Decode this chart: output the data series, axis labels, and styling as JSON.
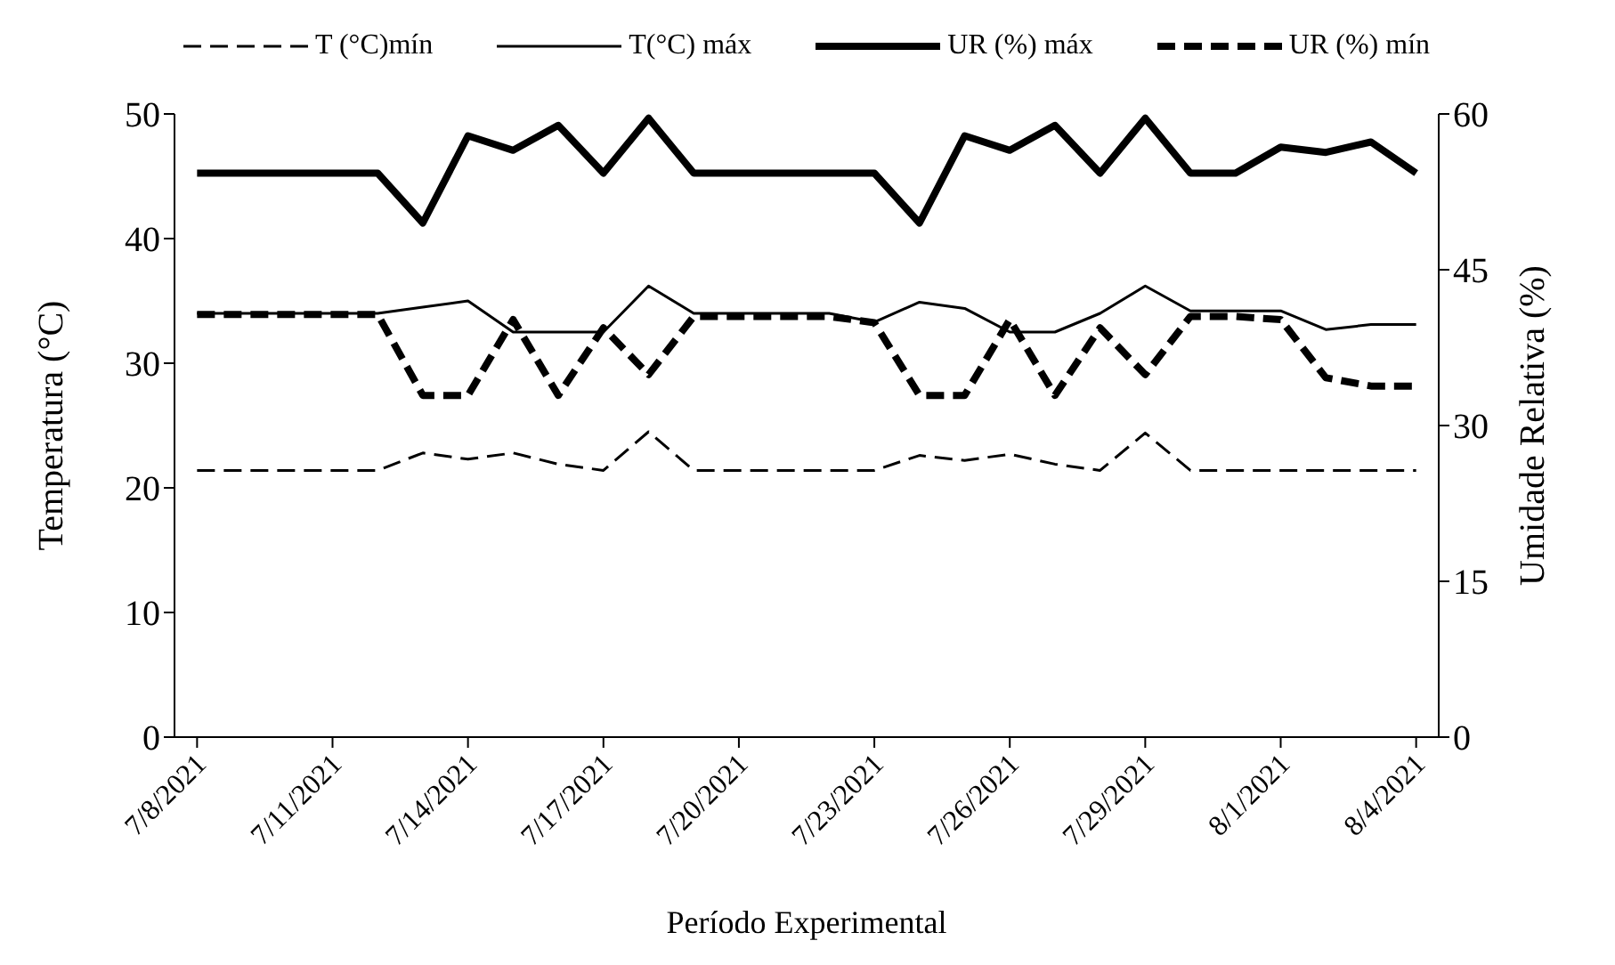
{
  "chart_data": {
    "type": "line",
    "xlabel": "Período Experimental",
    "ylabel": "Temperatura (°C)",
    "y2label": "Umidade Relativa (%)",
    "x": [
      "2021-07-08",
      "2021-07-09",
      "2021-07-10",
      "2021-07-11",
      "2021-07-12",
      "2021-07-13",
      "2021-07-14",
      "2021-07-15",
      "2021-07-16",
      "2021-07-17",
      "2021-07-18",
      "2021-07-19",
      "2021-07-20",
      "2021-07-21",
      "2021-07-22",
      "2021-07-23",
      "2021-07-24",
      "2021-07-25",
      "2021-07-26",
      "2021-07-27",
      "2021-07-28",
      "2021-07-29",
      "2021-07-30",
      "2021-07-31",
      "2021-08-01",
      "2021-08-02",
      "2021-08-03",
      "2021-08-04"
    ],
    "xlim": [
      "2021-07-07T12:00",
      "2021-08-04T12:00"
    ],
    "xticks": [
      {
        "value": "2021-07-08",
        "label": "7/8/2021"
      },
      {
        "value": "2021-07-11",
        "label": "7/11/2021"
      },
      {
        "value": "2021-07-14",
        "label": "7/14/2021"
      },
      {
        "value": "2021-07-17",
        "label": "7/17/2021"
      },
      {
        "value": "2021-07-20",
        "label": "7/20/2021"
      },
      {
        "value": "2021-07-23",
        "label": "7/23/2021"
      },
      {
        "value": "2021-07-26",
        "label": "7/26/2021"
      },
      {
        "value": "2021-07-29",
        "label": "7/29/2021"
      },
      {
        "value": "2021-08-01",
        "label": "8/1/2021"
      },
      {
        "value": "2021-08-04",
        "label": "8/4/2021"
      }
    ],
    "ylim": [
      0,
      50
    ],
    "yticks": [
      0,
      10,
      20,
      30,
      40,
      50
    ],
    "y2lim": [
      0,
      60
    ],
    "y2ticks": [
      0,
      15,
      30,
      45,
      60
    ],
    "legend": "top",
    "grid": false,
    "marker": "none",
    "series": [
      {
        "name": "T (°C)mín",
        "color": "#000000",
        "line_style": "dashed",
        "values": [
          21.4,
          21.4,
          21.4,
          21.4,
          21.4,
          22.8,
          22.3,
          22.8,
          21.9,
          21.4,
          24.5,
          21.4,
          21.4,
          21.4,
          21.4,
          21.4,
          22.6,
          22.2,
          22.7,
          21.9,
          21.4,
          24.4,
          21.4,
          21.4,
          21.4,
          21.4,
          21.4,
          21.4
        ]
      },
      {
        "name": "T(°C) máx",
        "color": "#000000",
        "line_style": "solid",
        "values": [
          34.0,
          34.0,
          34.0,
          34.0,
          34.0,
          34.5,
          35.0,
          32.5,
          32.5,
          32.5,
          36.2,
          34.0,
          34.0,
          34.0,
          34.0,
          33.3,
          34.9,
          34.4,
          32.5,
          32.5,
          34.0,
          36.2,
          34.2,
          34.2,
          34.2,
          32.7,
          33.1,
          33.1
        ]
      },
      {
        "name": "UR (%) máx",
        "color": "#000000",
        "line_style": "solid",
        "axis": "y2",
        "values": [
          54.3,
          54.3,
          54.3,
          54.3,
          54.3,
          49.5,
          57.9,
          56.5,
          58.9,
          54.3,
          59.6,
          54.3,
          54.3,
          54.3,
          54.3,
          54.3,
          49.5,
          57.9,
          56.5,
          58.9,
          54.3,
          59.6,
          54.3,
          54.3,
          56.8,
          56.3,
          57.3,
          54.3
        ]
      },
      {
        "name": "UR (%) mín",
        "color": "#000000",
        "line_style": "dashed",
        "axis": "y2",
        "values": [
          40.7,
          40.7,
          40.7,
          40.7,
          40.7,
          32.9,
          32.9,
          40.2,
          32.9,
          39.4,
          34.9,
          40.5,
          40.5,
          40.5,
          40.5,
          39.9,
          32.9,
          32.9,
          40.2,
          32.9,
          39.4,
          34.9,
          40.5,
          40.5,
          40.2,
          34.6,
          33.8,
          33.8
        ]
      }
    ]
  }
}
